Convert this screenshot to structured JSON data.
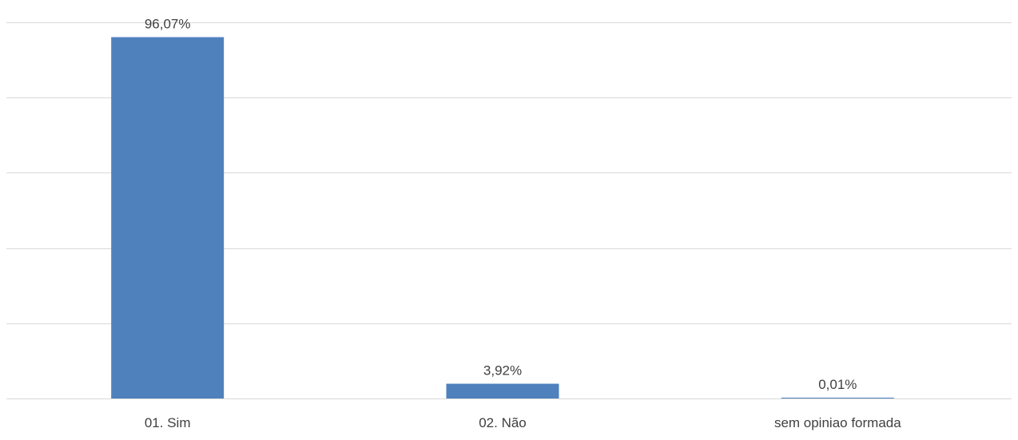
{
  "chart_data": {
    "type": "bar",
    "categories": [
      "01. Sim",
      "02. Não",
      "sem opiniao formada"
    ],
    "values": [
      96.07,
      3.92,
      0.01
    ],
    "data_labels": [
      "96,07%",
      "3,92%",
      "0,01%"
    ],
    "ylim": [
      0,
      100
    ],
    "y_unit": "%",
    "grid": true,
    "legend": "none",
    "bar_color": "#4f81bd"
  }
}
